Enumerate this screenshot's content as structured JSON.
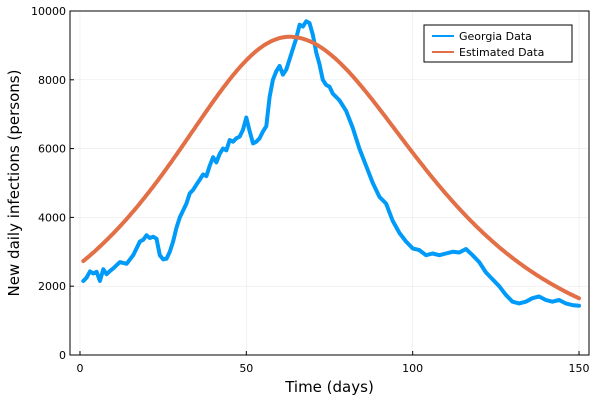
{
  "chart_data": {
    "type": "line",
    "xlabel": "Time (days)",
    "ylabel": "New daily infections (persons)",
    "xlim": [
      -3,
      153
    ],
    "ylim": [
      0,
      10000
    ],
    "xticks": [
      0,
      50,
      100,
      150
    ],
    "yticks": [
      0,
      2000,
      4000,
      6000,
      8000,
      10000
    ],
    "grid": true,
    "legend_position": "top-right",
    "series": [
      {
        "name": "Georgia Data",
        "color": "#009AF9",
        "x": [
          1,
          2,
          3,
          4,
          5,
          6,
          7,
          8,
          9,
          10,
          12,
          14,
          16,
          18,
          19,
          20,
          21,
          22,
          23,
          24,
          25,
          26,
          27,
          28,
          29,
          30,
          32,
          33,
          34,
          35,
          36,
          37,
          38,
          39,
          40,
          41,
          42,
          43,
          44,
          45,
          46,
          47,
          48,
          49,
          50,
          51,
          52,
          53,
          54,
          55,
          56,
          57,
          58,
          59,
          60,
          61,
          62,
          63,
          64,
          65,
          66,
          67,
          68,
          69,
          70,
          71,
          72,
          73,
          74,
          75,
          76,
          78,
          80,
          82,
          84,
          86,
          88,
          90,
          92,
          94,
          96,
          98,
          100,
          102,
          104,
          106,
          108,
          110,
          112,
          114,
          116,
          118,
          120,
          122,
          124,
          126,
          128,
          130,
          132,
          134,
          136,
          138,
          140,
          142,
          144,
          146,
          148,
          150
        ],
        "y": [
          2150,
          2250,
          2430,
          2370,
          2420,
          2150,
          2490,
          2350,
          2440,
          2520,
          2700,
          2650,
          2900,
          3300,
          3350,
          3480,
          3400,
          3440,
          3380,
          2900,
          2780,
          2800,
          3000,
          3300,
          3700,
          4000,
          4400,
          4700,
          4800,
          4950,
          5100,
          5250,
          5200,
          5500,
          5750,
          5600,
          5850,
          6000,
          5950,
          6250,
          6200,
          6300,
          6350,
          6550,
          6900,
          6500,
          6150,
          6200,
          6300,
          6500,
          6650,
          7500,
          8000,
          8250,
          8400,
          8150,
          8300,
          8600,
          8900,
          9200,
          9600,
          9550,
          9700,
          9650,
          9300,
          8800,
          8450,
          8000,
          7850,
          7800,
          7600,
          7400,
          7100,
          6600,
          6000,
          5500,
          5000,
          4600,
          4400,
          3900,
          3550,
          3300,
          3100,
          3050,
          2900,
          2950,
          2900,
          2950,
          3000,
          2980,
          3080,
          2900,
          2700,
          2400,
          2200,
          2000,
          1750,
          1550,
          1500,
          1550,
          1650,
          1700,
          1600,
          1550,
          1600,
          1500,
          1450,
          1430
        ]
      },
      {
        "name": "Estimated Data",
        "color": "#E26F46",
        "model": {
          "peak_x": 63,
          "peak_y": 9250,
          "left_rate": 0.0305,
          "right_rate": 0.0277
        }
      }
    ]
  }
}
